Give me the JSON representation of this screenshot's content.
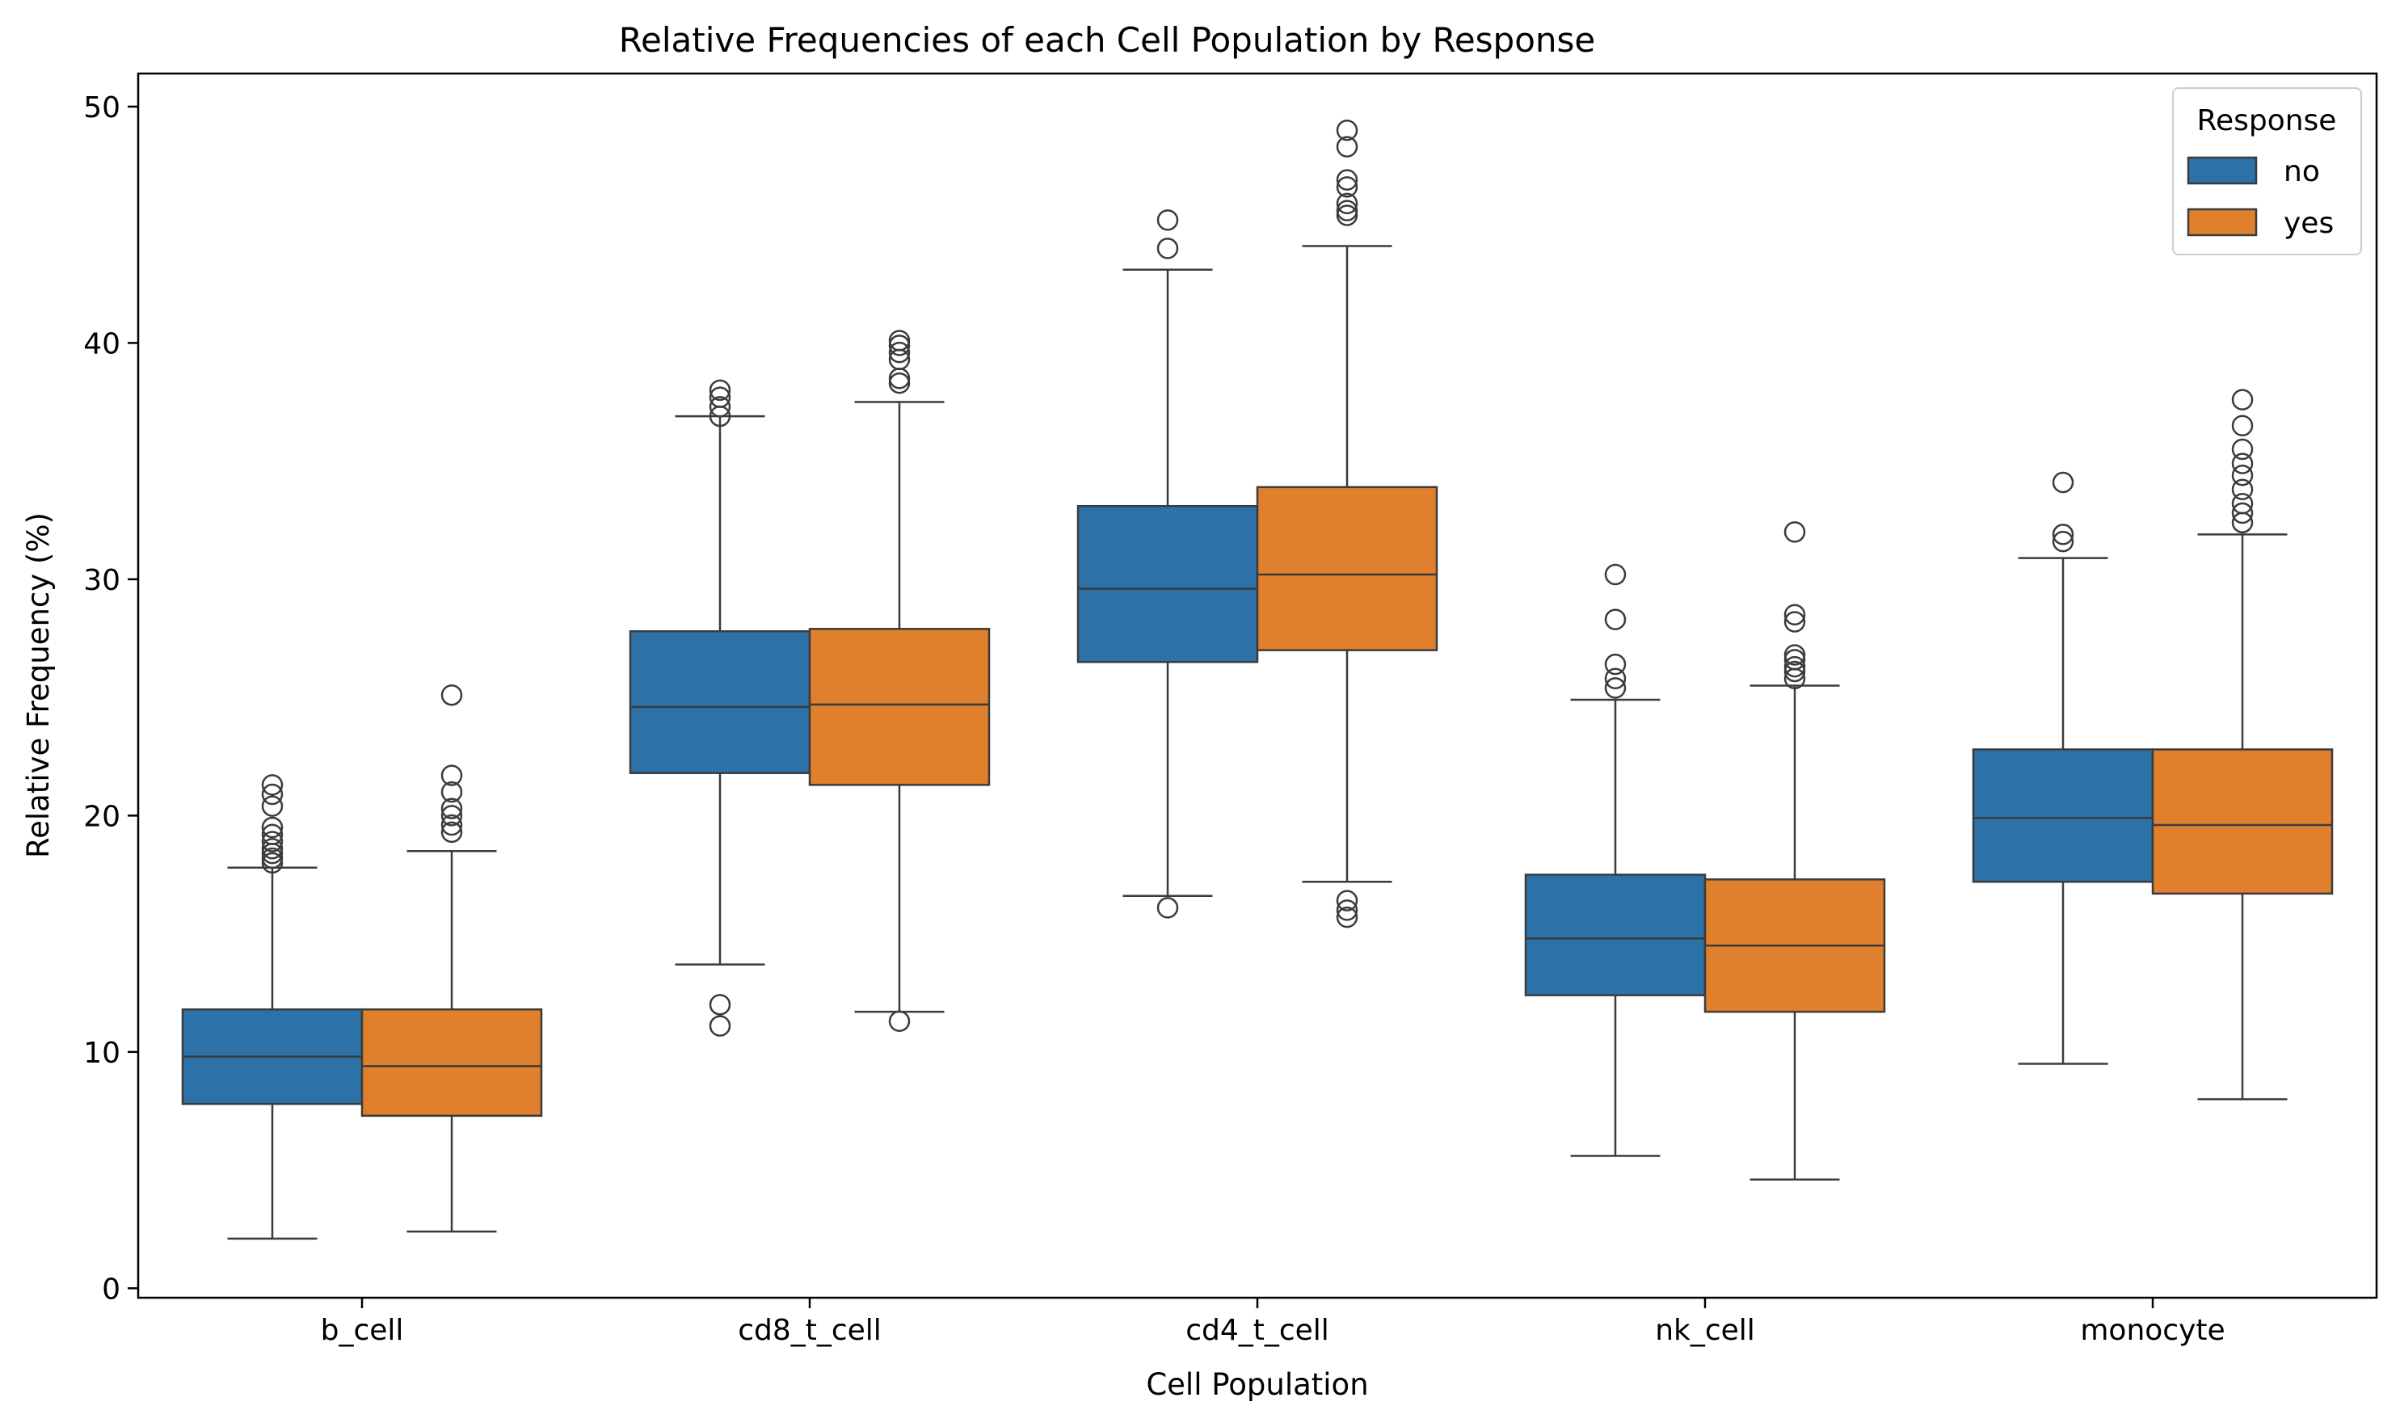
{
  "chart_data": {
    "type": "box",
    "title": "Relative Frequencies of each Cell Population by Response",
    "xlabel": "Cell Population",
    "ylabel": "Relative Frequency (%)",
    "categories": [
      "b_cell",
      "cd8_t_cell",
      "cd4_t_cell",
      "nk_cell",
      "monocyte"
    ],
    "ylim": [
      -0.4,
      51.4
    ],
    "yticks": [
      0,
      10,
      20,
      30,
      40,
      50
    ],
    "ytick_labels": [
      "0",
      "10",
      "20",
      "30",
      "40",
      "50"
    ],
    "grid": false,
    "legend": {
      "title": "Response",
      "position": "top-right"
    },
    "series": [
      {
        "name": "no",
        "color": "#2c72a8",
        "boxes": [
          {
            "whislo": 2.1,
            "q1": 7.8,
            "med": 9.8,
            "q3": 11.8,
            "whishi": 17.8,
            "fliers": [
              18.0,
              18.2,
              18.4,
              18.6,
              18.9,
              19.2,
              19.5,
              20.4,
              20.9,
              21.3
            ]
          },
          {
            "whislo": 13.7,
            "q1": 21.8,
            "med": 24.6,
            "q3": 27.8,
            "whishi": 36.9,
            "fliers": [
              11.1,
              12.0,
              36.9,
              37.3,
              37.7,
              38.0
            ]
          },
          {
            "whislo": 16.6,
            "q1": 26.5,
            "med": 29.6,
            "q3": 33.1,
            "whishi": 43.1,
            "fliers": [
              16.1,
              44.0,
              45.2
            ]
          },
          {
            "whislo": 5.6,
            "q1": 12.4,
            "med": 14.8,
            "q3": 17.5,
            "whishi": 24.9,
            "fliers": [
              25.4,
              25.8,
              26.4,
              28.3,
              30.2
            ]
          },
          {
            "whislo": 9.5,
            "q1": 17.2,
            "med": 19.9,
            "q3": 22.8,
            "whishi": 30.9,
            "fliers": [
              31.6,
              31.9,
              34.1
            ]
          }
        ]
      },
      {
        "name": "yes",
        "color": "#e07f2c",
        "boxes": [
          {
            "whislo": 2.4,
            "q1": 7.3,
            "med": 9.4,
            "q3": 11.8,
            "whishi": 18.5,
            "fliers": [
              19.3,
              19.6,
              20.0,
              20.3,
              21.0,
              21.7,
              25.1
            ]
          },
          {
            "whislo": 11.7,
            "q1": 21.3,
            "med": 24.7,
            "q3": 27.9,
            "whishi": 37.5,
            "fliers": [
              11.3,
              38.3,
              38.5,
              39.3,
              39.6,
              39.9,
              40.1
            ]
          },
          {
            "whislo": 17.2,
            "q1": 27.0,
            "med": 30.2,
            "q3": 33.9,
            "whishi": 44.1,
            "fliers": [
              15.7,
              16.0,
              16.4,
              45.4,
              45.6,
              45.9,
              46.6,
              46.9,
              48.3,
              49.0
            ]
          },
          {
            "whislo": 4.6,
            "q1": 11.7,
            "med": 14.5,
            "q3": 17.3,
            "whishi": 25.5,
            "fliers": [
              25.8,
              26.1,
              26.3,
              26.6,
              26.8,
              28.2,
              28.5,
              32.0
            ]
          },
          {
            "whislo": 8.0,
            "q1": 16.7,
            "med": 19.6,
            "q3": 22.8,
            "whishi": 31.9,
            "fliers": [
              32.4,
              32.8,
              33.2,
              33.8,
              34.4,
              34.9,
              35.5,
              36.5,
              37.6
            ]
          }
        ]
      }
    ]
  }
}
